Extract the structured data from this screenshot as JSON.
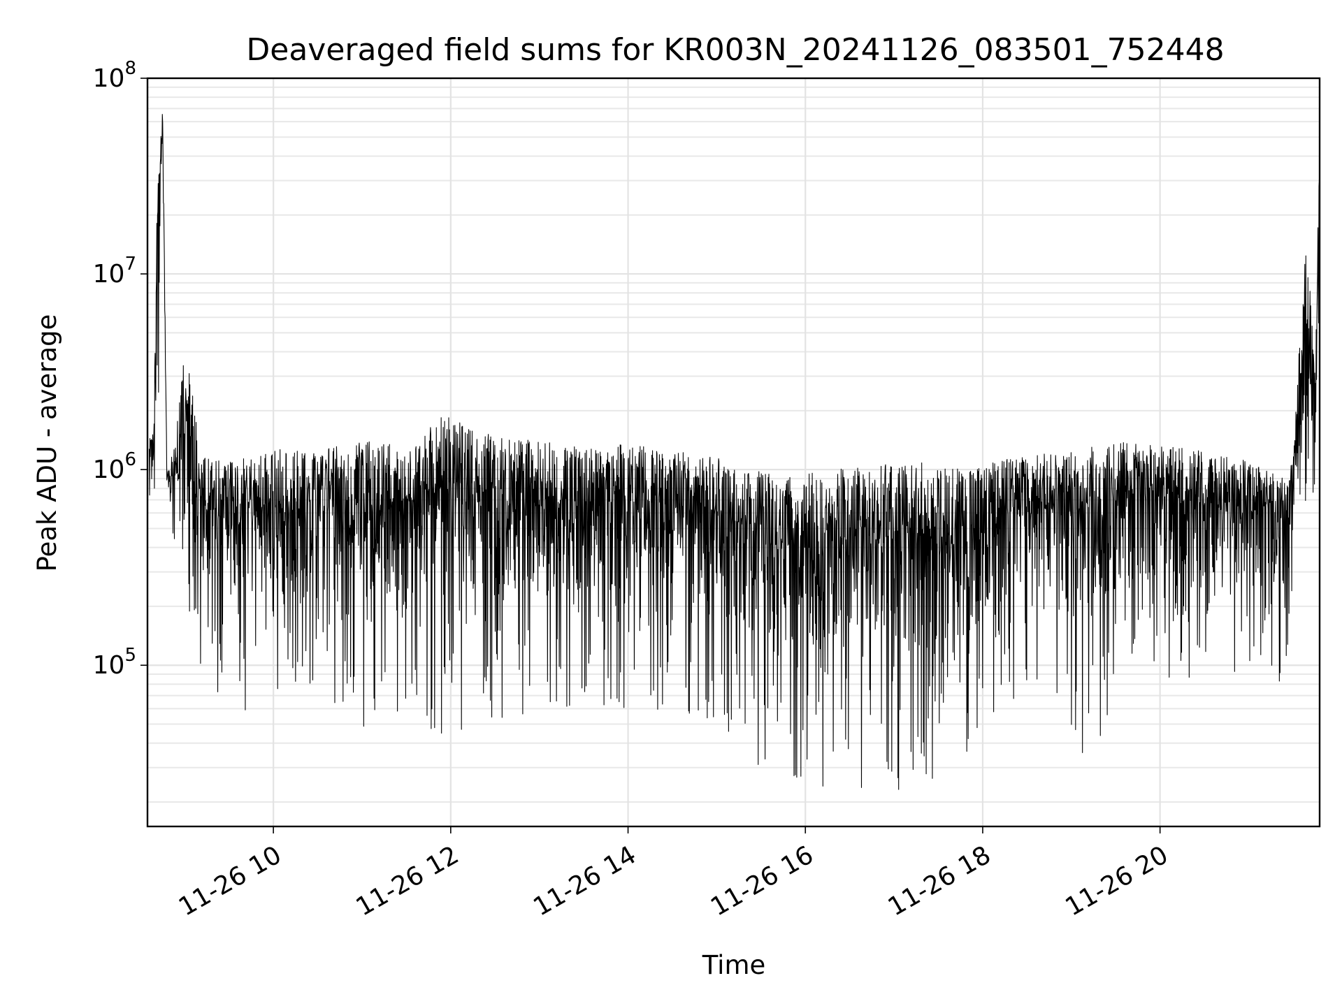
{
  "chart_data": {
    "type": "line",
    "title": "Deaveraged field sums for KR003N_20241126_083501_752448",
    "xlabel": "Time",
    "ylabel": "Peak ADU - average",
    "xlim_hours": [
      8.58,
      21.8
    ],
    "ylim": [
      15000,
      100000000
    ],
    "yscale": "log",
    "grid": true,
    "line_color": "#000000",
    "x_ticks": [
      {
        "value": 10,
        "label": "11-26 10"
      },
      {
        "value": 12,
        "label": "11-26 12"
      },
      {
        "value": 14,
        "label": "11-26 14"
      },
      {
        "value": 16,
        "label": "11-26 16"
      },
      {
        "value": 18,
        "label": "11-26 18"
      },
      {
        "value": 20,
        "label": "11-26 20"
      }
    ],
    "y_ticks": [
      {
        "value": 100000,
        "base": "10",
        "exp": "5"
      },
      {
        "value": 1000000,
        "base": "10",
        "exp": "6"
      },
      {
        "value": 10000000,
        "base": "10",
        "exp": "7"
      },
      {
        "value": 100000000,
        "base": "10",
        "exp": "8"
      }
    ],
    "series": [
      {
        "name": "Peak ADU - average",
        "note": "dense time series; envelope points (hour, upper, lower) approximated from plot",
        "envelope": [
          {
            "x": 8.6,
            "hi": 1500000,
            "lo": 500000
          },
          {
            "x": 8.65,
            "hi": 1600000,
            "lo": 700000
          },
          {
            "x": 8.7,
            "hi": 55000000,
            "lo": 600000
          },
          {
            "x": 8.75,
            "hi": 72000000,
            "lo": 55000000
          },
          {
            "x": 8.8,
            "hi": 1000000,
            "lo": 450000
          },
          {
            "x": 8.9,
            "hi": 1500000,
            "lo": 350000
          },
          {
            "x": 9.0,
            "hi": 4300000,
            "lo": 150000
          },
          {
            "x": 9.2,
            "hi": 1200000,
            "lo": 90000
          },
          {
            "x": 9.5,
            "hi": 1100000,
            "lo": 60000
          },
          {
            "x": 10.0,
            "hi": 1300000,
            "lo": 55000
          },
          {
            "x": 10.5,
            "hi": 1250000,
            "lo": 50000
          },
          {
            "x": 11.0,
            "hi": 1400000,
            "lo": 45000
          },
          {
            "x": 11.5,
            "hi": 1350000,
            "lo": 60000
          },
          {
            "x": 11.9,
            "hi": 1900000,
            "lo": 40000
          },
          {
            "x": 12.5,
            "hi": 1500000,
            "lo": 50000
          },
          {
            "x": 13.0,
            "hi": 1400000,
            "lo": 55000
          },
          {
            "x": 13.5,
            "hi": 1300000,
            "lo": 60000
          },
          {
            "x": 14.0,
            "hi": 1350000,
            "lo": 55000
          },
          {
            "x": 14.5,
            "hi": 1250000,
            "lo": 60000
          },
          {
            "x": 15.0,
            "hi": 1150000,
            "lo": 50000
          },
          {
            "x": 15.4,
            "hi": 1000000,
            "lo": 30000
          },
          {
            "x": 15.8,
            "hi": 950000,
            "lo": 25000
          },
          {
            "x": 16.3,
            "hi": 1000000,
            "lo": 22000
          },
          {
            "x": 16.8,
            "hi": 1050000,
            "lo": 24000
          },
          {
            "x": 17.3,
            "hi": 1100000,
            "lo": 22000
          },
          {
            "x": 17.8,
            "hi": 1000000,
            "lo": 28000
          },
          {
            "x": 18.3,
            "hi": 1150000,
            "lo": 60000
          },
          {
            "x": 18.8,
            "hi": 1250000,
            "lo": 70000
          },
          {
            "x": 19.2,
            "hi": 1300000,
            "lo": 28000
          },
          {
            "x": 19.6,
            "hi": 1400000,
            "lo": 70000
          },
          {
            "x": 20.0,
            "hi": 1350000,
            "lo": 80000
          },
          {
            "x": 20.5,
            "hi": 1250000,
            "lo": 90000
          },
          {
            "x": 21.0,
            "hi": 1100000,
            "lo": 80000
          },
          {
            "x": 21.4,
            "hi": 900000,
            "lo": 80000
          },
          {
            "x": 21.5,
            "hi": 1200000,
            "lo": 250000
          },
          {
            "x": 21.65,
            "hi": 17000000,
            "lo": 500000
          },
          {
            "x": 21.75,
            "hi": 3000000,
            "lo": 700000
          },
          {
            "x": 21.8,
            "hi": 62000000,
            "lo": 1500000
          }
        ]
      }
    ]
  }
}
